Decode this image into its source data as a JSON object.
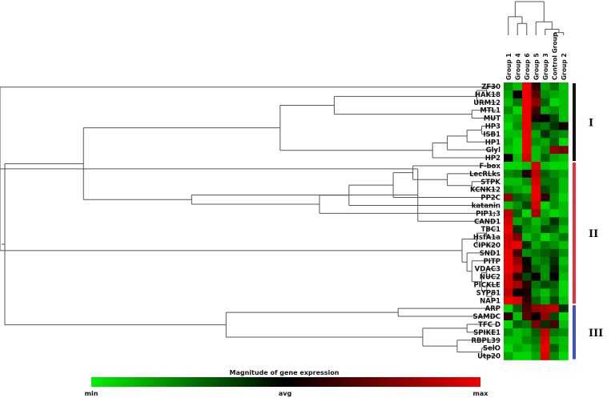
{
  "chart_data": {
    "type": "heatmap",
    "title": "",
    "columns": [
      "Group 1",
      "Group 4",
      "Group 6",
      "Group 5",
      "Group 3",
      "Control Group",
      "Group 2"
    ],
    "rows": [
      "ZF30",
      "HAK18",
      "URM12",
      "MTL1",
      "MUT",
      "HP3",
      "ISB1",
      "HP1",
      "Glyl",
      "HP2",
      "F-box",
      "LecRLks",
      "STPK",
      "KCNK12",
      "PP2C",
      "katanin",
      "PIP1;3",
      "CAND1",
      "TBC1",
      "HsfA1a",
      "CIPK20",
      "SND1",
      "PITP",
      "VDAC3",
      "NUC2",
      "PICKLE",
      "SYP81",
      "NAP1",
      "ARP",
      "SAMDC",
      "TFC D",
      "SPIKE1",
      "RBPL39",
      "SelO",
      "Utp20"
    ],
    "values": [
      [
        -0.6,
        -0.8,
        1.0,
        0.2,
        -0.7,
        -0.5,
        -0.8
      ],
      [
        -0.7,
        0.0,
        1.0,
        0.4,
        -0.6,
        -0.7,
        -0.8
      ],
      [
        -0.8,
        -0.5,
        1.0,
        0.6,
        -0.4,
        -0.9,
        -0.8
      ],
      [
        -0.6,
        -0.9,
        1.0,
        0.3,
        -0.7,
        -0.6,
        -0.8
      ],
      [
        -0.8,
        -0.7,
        1.0,
        0.1,
        0.0,
        -0.3,
        -0.8
      ],
      [
        -0.9,
        -0.6,
        1.0,
        -0.4,
        -0.5,
        -0.2,
        0.1
      ],
      [
        -0.8,
        -0.8,
        1.0,
        -0.7,
        -0.2,
        -0.5,
        -0.6
      ],
      [
        -0.7,
        -0.9,
        1.0,
        -0.6,
        -0.7,
        -0.4,
        -0.9
      ],
      [
        -0.8,
        -0.9,
        1.0,
        -0.8,
        -0.6,
        0.6,
        0.5
      ],
      [
        0.0,
        -0.8,
        0.9,
        -0.8,
        -0.4,
        -0.7,
        -0.8
      ],
      [
        -0.9,
        -0.9,
        -0.8,
        0.9,
        -0.8,
        -0.9,
        -0.9
      ],
      [
        -0.6,
        -0.5,
        0.1,
        0.8,
        -0.4,
        -0.6,
        -0.7
      ],
      [
        -0.8,
        -0.8,
        -0.6,
        0.9,
        -0.5,
        -0.5,
        -0.8
      ],
      [
        -0.6,
        -0.7,
        -0.8,
        1.0,
        -0.3,
        -0.5,
        -0.8
      ],
      [
        0.6,
        -0.4,
        -0.5,
        1.0,
        0.2,
        -0.6,
        -0.9
      ],
      [
        -0.8,
        -0.6,
        -0.3,
        0.9,
        -0.9,
        -0.6,
        -0.8
      ],
      [
        0.8,
        -0.4,
        -0.9,
        0.7,
        -0.7,
        -0.9,
        -0.8
      ],
      [
        0.9,
        -0.7,
        -0.5,
        -0.8,
        -0.6,
        -0.2,
        -0.6
      ],
      [
        1.0,
        -0.2,
        -0.6,
        -0.7,
        -0.3,
        -0.4,
        -0.8
      ],
      [
        0.9,
        0.5,
        -0.8,
        -0.6,
        -0.9,
        -0.7,
        -0.5
      ],
      [
        0.9,
        1.0,
        -0.2,
        -0.7,
        -0.5,
        -0.6,
        -0.8
      ],
      [
        1.0,
        0.3,
        -0.6,
        -0.5,
        -0.4,
        -0.3,
        -0.6
      ],
      [
        1.0,
        0.6,
        0.0,
        -0.6,
        -0.5,
        -0.2,
        -0.8
      ],
      [
        1.0,
        0.8,
        0.1,
        -0.4,
        -0.6,
        -0.1,
        -0.7
      ],
      [
        0.9,
        0.2,
        -0.3,
        0.0,
        -0.6,
        0.0,
        -0.8
      ],
      [
        0.9,
        0.7,
        0.2,
        -0.5,
        -0.3,
        -0.4,
        -0.9
      ],
      [
        0.8,
        0.0,
        0.1,
        -0.6,
        -0.8,
        -0.5,
        -0.9
      ],
      [
        1.0,
        0.9,
        0.2,
        -0.4,
        -0.7,
        -0.3,
        -0.8
      ],
      [
        -0.9,
        -0.4,
        0.3,
        0.6,
        0.7,
        0.8,
        -0.2
      ],
      [
        0.2,
        -0.8,
        0.4,
        0.0,
        0.6,
        -0.3,
        -0.9
      ],
      [
        -0.9,
        -0.4,
        -0.5,
        0.5,
        -0.2,
        0.3,
        -0.8
      ],
      [
        -0.6,
        -0.8,
        -0.7,
        -0.4,
        0.8,
        -0.5,
        -0.6
      ],
      [
        -0.8,
        -0.8,
        -0.6,
        -0.5,
        0.9,
        -0.7,
        -0.8
      ],
      [
        -0.9,
        -0.7,
        -0.8,
        -0.6,
        1.0,
        -0.4,
        -0.8
      ],
      [
        -0.7,
        -0.9,
        -0.9,
        -0.7,
        0.9,
        -0.6,
        -0.9
      ]
    ],
    "clusters": [
      {
        "label": "I",
        "from": "ZF30",
        "to": "HP2",
        "color": "#111111"
      },
      {
        "label": "II",
        "from": "F-box",
        "to": "NAP1",
        "color": "#e83040"
      },
      {
        "label": "III",
        "from": "ARP",
        "to": "Utp20",
        "color": "#4050c8"
      }
    ],
    "color_scale": {
      "title": "Magnitude of gene expression",
      "min_label": "min",
      "mid_label": "avg",
      "max_label": "max",
      "min_color": "#00ee00",
      "mid_color": "#000000",
      "max_color": "#ee0000"
    },
    "grid": false
  }
}
